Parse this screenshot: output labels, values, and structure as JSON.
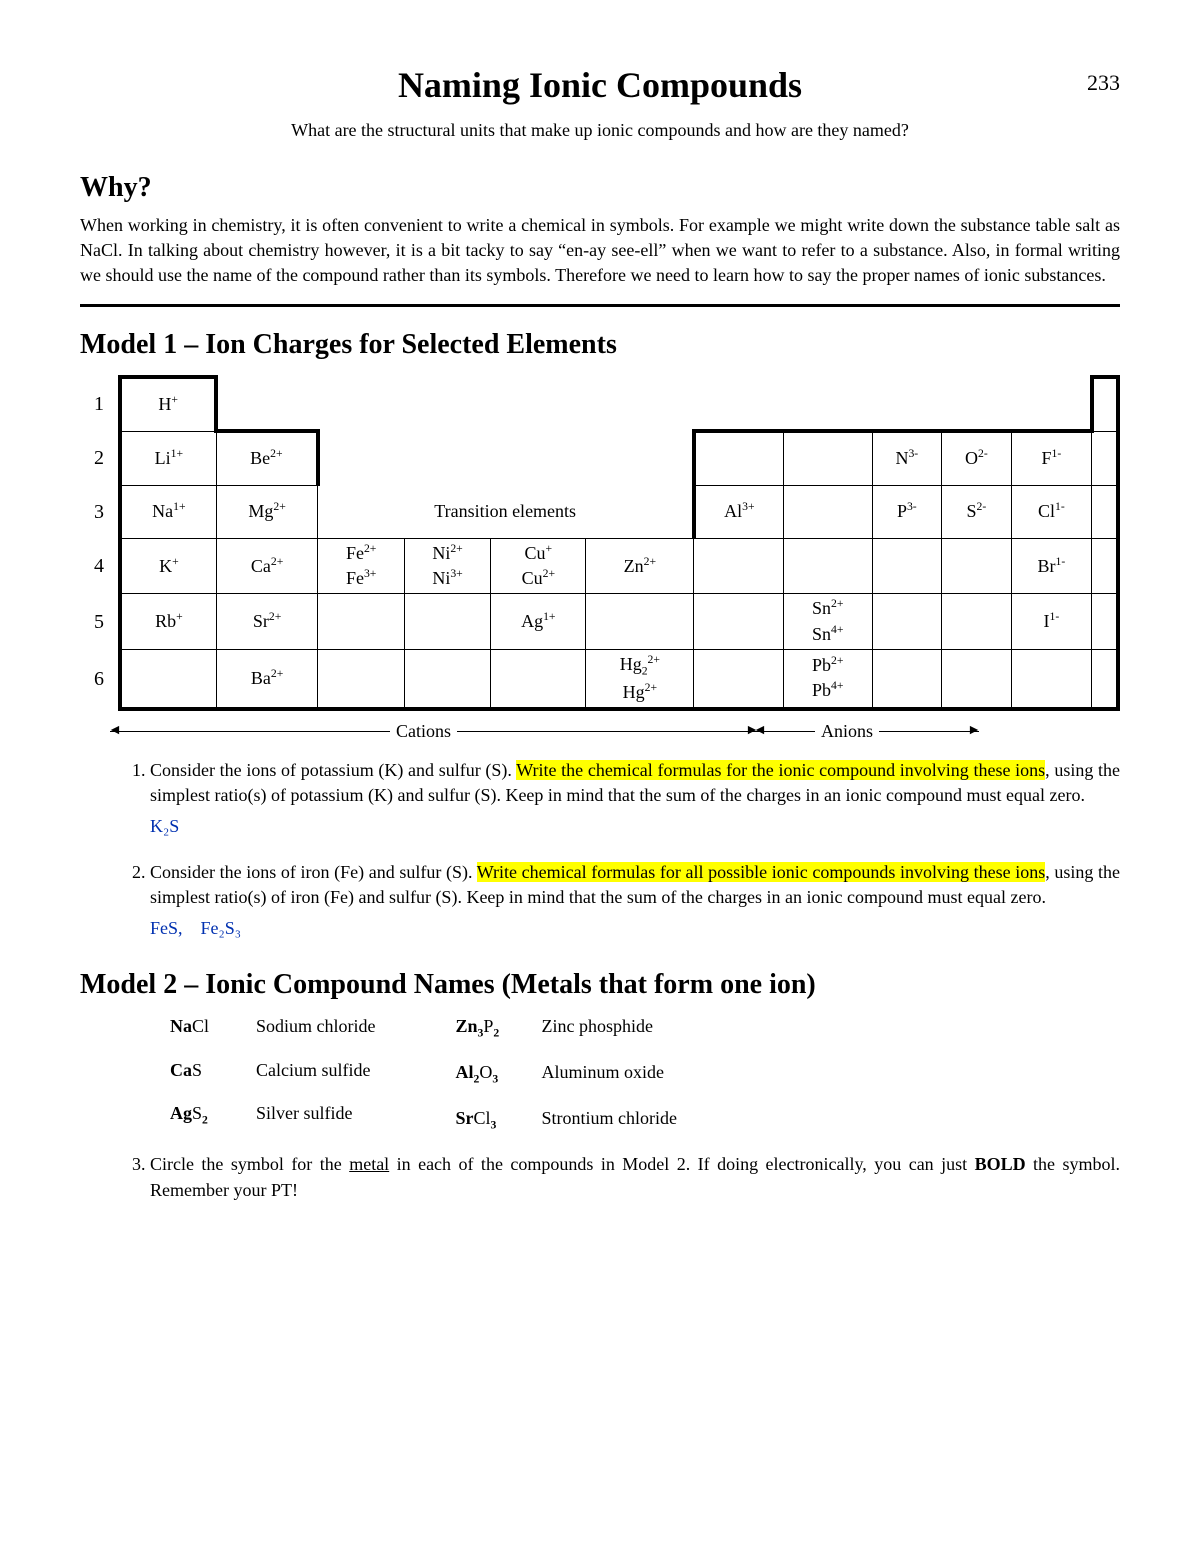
{
  "page": {
    "title": "Naming Ionic Compounds",
    "number": "233",
    "subtitle": "What are the structural units that make up ionic compounds and how are they named?"
  },
  "why": {
    "heading": "Why?",
    "text": "When working in chemistry, it is often convenient to write a chemical in symbols. For example we might write down the substance table salt as NaCl. In talking about chemistry however, it is a bit tacky to say “en-ay see-ell” when we want to refer to a substance. Also, in formal writing we should use the name of the compound rather than its symbols. Therefore we need to learn how to say the proper names of ionic substances."
  },
  "model1": {
    "heading": "Model 1 – Ion Charges for Selected Elements",
    "transition_label": "Transition elements",
    "cations_label": "Cations",
    "anions_label": "Anions"
  },
  "q1": {
    "pre": "Consider the ions of potassium (K) and sulfur (S). ",
    "hl": "Write the chemical formulas for the ionic compound involving these ions",
    "post": ", using the simplest ratio(s) of potassium (K) and sulfur (S). Keep in mind that the sum of the charges in an ionic compound must equal zero.",
    "answer": "K₂S"
  },
  "q2": {
    "pre": "Consider the ions of iron (Fe) and sulfur (S). ",
    "hl": "Write chemical formulas for all possible ionic compounds involving these ions",
    "post": ", using the simplest ratio(s) of iron (Fe) and sulfur (S). Keep in mind that the sum of the charges in an ionic compound must equal zero.",
    "answer": "FeS, Fe₂S₃"
  },
  "model2": {
    "heading": "Model 2 – Ionic Compound Names (Metals that form one ion)",
    "left": [
      {
        "metal": "Na",
        "rest": "Cl",
        "name": "Sodium chloride"
      },
      {
        "metal": "Ca",
        "rest": "S",
        "name": "Calcium sulfide"
      },
      {
        "metal": "Ag",
        "rest": "S",
        "sub": "2",
        "name": "Silver sulfide"
      }
    ],
    "right": [
      {
        "metal": "Zn",
        "msub": "3",
        "rest": "P",
        "sub": "2",
        "name": "Zinc phosphide"
      },
      {
        "metal": "Al",
        "msub": "2",
        "rest": "O",
        "sub": "3",
        "name": "Aluminum oxide"
      },
      {
        "metal": "Sr",
        "rest": "Cl",
        "sub": "3",
        "name": "Strontium chloride"
      }
    ]
  },
  "q3": {
    "pre": "Circle the symbol for the ",
    "u": "metal",
    "mid": " in each of the compounds in Model 2. If doing electronically, you can just ",
    "b": "BOLD",
    "post": " the symbol. Remember your PT!"
  }
}
